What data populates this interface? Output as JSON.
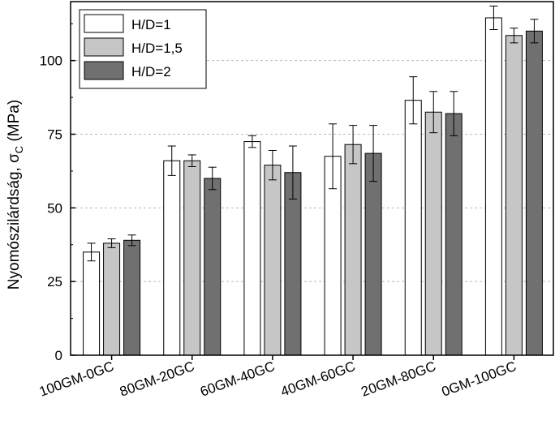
{
  "chart_data": {
    "type": "bar",
    "title": "",
    "xlabel": "",
    "ylabel": "Nyomószilárdság, σ",
    "ylabel_sub": "C",
    "ylabel_unit": "(MPa)",
    "ylim": [
      0,
      120
    ],
    "yticks": [
      0,
      25,
      50,
      75,
      100
    ],
    "grid": "horizontal dashed",
    "legend_position": "top-left",
    "categories": [
      "100GM-0GC",
      "80GM-20GC",
      "60GM-40GC",
      "40GM-60GC",
      "20GM-80GC",
      "0GM-100GC"
    ],
    "series": [
      {
        "name": "H/D=1",
        "color": "#ffffff",
        "values": [
          35.0,
          66.0,
          72.5,
          67.5,
          86.5,
          114.5
        ],
        "errors": [
          3.0,
          5.0,
          2.0,
          11.0,
          8.0,
          4.0
        ]
      },
      {
        "name": "H/D=1,5",
        "color": "#c6c6c6",
        "values": [
          38.0,
          66.0,
          64.5,
          71.5,
          82.5,
          108.5
        ],
        "errors": [
          1.5,
          2.0,
          5.0,
          6.5,
          7.0,
          2.5
        ]
      },
      {
        "name": "H/D=2",
        "color": "#707070",
        "values": [
          39.0,
          60.0,
          62.0,
          68.5,
          82.0,
          110.0
        ],
        "errors": [
          1.8,
          3.8,
          9.0,
          9.5,
          7.5,
          4.0
        ]
      }
    ]
  }
}
